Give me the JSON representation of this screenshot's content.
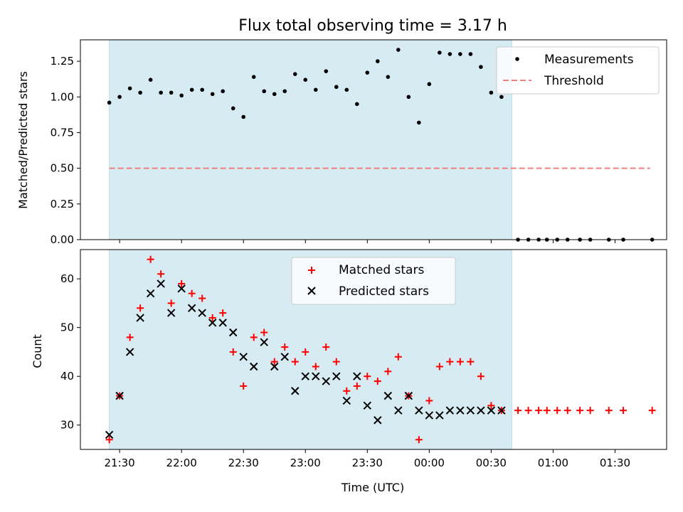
{
  "chart_data": [
    {
      "type": "scatter",
      "title": "Flux total observing time = 3.17 h",
      "xlabel": "",
      "ylabel": "Matched/Predicted stars",
      "ylim": [
        0,
        1.4
      ],
      "yticks": [
        "0.00",
        "0.25",
        "0.50",
        "0.75",
        "1.00",
        "1.25"
      ],
      "xlim": [
        "21:11",
        "01:55"
      ],
      "legend": "top-right",
      "shaded_span": [
        "21:25",
        "00:40"
      ],
      "threshold": {
        "name": "Threshold",
        "value": 0.5,
        "from": "21:25",
        "to": "01:47",
        "color": "#f08080"
      },
      "series": [
        {
          "name": "Measurements",
          "color": "#000000",
          "points": [
            [
              "21:25",
              0.96
            ],
            [
              "21:30",
              1.0
            ],
            [
              "21:35",
              1.06
            ],
            [
              "21:40",
              1.03
            ],
            [
              "21:45",
              1.12
            ],
            [
              "21:50",
              1.03
            ],
            [
              "21:55",
              1.03
            ],
            [
              "22:00",
              1.01
            ],
            [
              "22:05",
              1.05
            ],
            [
              "22:10",
              1.05
            ],
            [
              "22:15",
              1.02
            ],
            [
              "22:20",
              1.04
            ],
            [
              "22:25",
              0.92
            ],
            [
              "22:30",
              0.86
            ],
            [
              "22:35",
              1.14
            ],
            [
              "22:40",
              1.04
            ],
            [
              "22:45",
              1.02
            ],
            [
              "22:50",
              1.04
            ],
            [
              "22:55",
              1.16
            ],
            [
              "23:00",
              1.12
            ],
            [
              "23:05",
              1.05
            ],
            [
              "23:10",
              1.18
            ],
            [
              "23:15",
              1.07
            ],
            [
              "23:20",
              1.05
            ],
            [
              "23:25",
              0.95
            ],
            [
              "23:30",
              1.17
            ],
            [
              "23:35",
              1.25
            ],
            [
              "23:40",
              1.14
            ],
            [
              "23:45",
              1.33
            ],
            [
              "23:50",
              1.0
            ],
            [
              "23:55",
              0.82
            ],
            [
              "00:00",
              1.09
            ],
            [
              "00:05",
              1.31
            ],
            [
              "00:10",
              1.3
            ],
            [
              "00:15",
              1.3
            ],
            [
              "00:20",
              1.3
            ],
            [
              "00:25",
              1.21
            ],
            [
              "00:30",
              1.03
            ],
            [
              "00:35",
              1.0
            ],
            [
              "00:43",
              0.0
            ],
            [
              "00:48",
              0.0
            ],
            [
              "00:53",
              0.0
            ],
            [
              "00:57",
              0.0
            ],
            [
              "01:02",
              0.0
            ],
            [
              "01:07",
              0.0
            ],
            [
              "01:13",
              0.0
            ],
            [
              "01:18",
              0.0
            ],
            [
              "01:27",
              0.0
            ],
            [
              "01:34",
              0.0
            ],
            [
              "01:48",
              0.0
            ]
          ]
        }
      ]
    },
    {
      "type": "scatter",
      "title": "",
      "xlabel": "Time (UTC)",
      "ylabel": "Count",
      "ylim": [
        25,
        66
      ],
      "yticks": [
        "30",
        "40",
        "50",
        "60"
      ],
      "xlim": [
        "21:11",
        "01:55"
      ],
      "xticks": [
        "21:30",
        "22:00",
        "22:30",
        "23:00",
        "23:30",
        "00:00",
        "00:30",
        "01:00",
        "01:30"
      ],
      "legend": "upper center",
      "shaded_span": [
        "21:25",
        "00:40"
      ],
      "series": [
        {
          "name": "Matched stars",
          "color": "#ff0000",
          "marker": "+",
          "points": [
            [
              "21:25",
              27
            ],
            [
              "21:30",
              36
            ],
            [
              "21:35",
              48
            ],
            [
              "21:40",
              54
            ],
            [
              "21:45",
              64
            ],
            [
              "21:50",
              61
            ],
            [
              "21:55",
              55
            ],
            [
              "22:00",
              59
            ],
            [
              "22:05",
              57
            ],
            [
              "22:10",
              56
            ],
            [
              "22:15",
              52
            ],
            [
              "22:20",
              53
            ],
            [
              "22:25",
              45
            ],
            [
              "22:30",
              38
            ],
            [
              "22:35",
              48
            ],
            [
              "22:40",
              49
            ],
            [
              "22:45",
              43
            ],
            [
              "22:50",
              46
            ],
            [
              "22:55",
              43
            ],
            [
              "23:00",
              45
            ],
            [
              "23:05",
              42
            ],
            [
              "23:10",
              46
            ],
            [
              "23:15",
              43
            ],
            [
              "23:20",
              37
            ],
            [
              "23:25",
              38
            ],
            [
              "23:30",
              40
            ],
            [
              "23:35",
              39
            ],
            [
              "23:40",
              41
            ],
            [
              "23:45",
              44
            ],
            [
              "23:50",
              36
            ],
            [
              "23:55",
              27
            ],
            [
              "00:00",
              35
            ],
            [
              "00:05",
              42
            ],
            [
              "00:10",
              43
            ],
            [
              "00:15",
              43
            ],
            [
              "00:20",
              43
            ],
            [
              "00:25",
              40
            ],
            [
              "00:30",
              34
            ],
            [
              "00:35",
              33
            ],
            [
              "00:43",
              33
            ],
            [
              "00:48",
              33
            ],
            [
              "00:53",
              33
            ],
            [
              "00:57",
              33
            ],
            [
              "01:02",
              33
            ],
            [
              "01:07",
              33
            ],
            [
              "01:13",
              33
            ],
            [
              "01:18",
              33
            ],
            [
              "01:27",
              33
            ],
            [
              "01:34",
              33
            ],
            [
              "01:48",
              33
            ]
          ]
        },
        {
          "name": "Predicted stars",
          "color": "#000000",
          "marker": "x",
          "points": [
            [
              "21:25",
              28
            ],
            [
              "21:30",
              36
            ],
            [
              "21:35",
              45
            ],
            [
              "21:40",
              52
            ],
            [
              "21:45",
              57
            ],
            [
              "21:50",
              59
            ],
            [
              "21:55",
              53
            ],
            [
              "22:00",
              58
            ],
            [
              "22:05",
              54
            ],
            [
              "22:10",
              53
            ],
            [
              "22:15",
              51
            ],
            [
              "22:20",
              51
            ],
            [
              "22:25",
              49
            ],
            [
              "22:30",
              44
            ],
            [
              "22:35",
              42
            ],
            [
              "22:40",
              47
            ],
            [
              "22:45",
              42
            ],
            [
              "22:50",
              44
            ],
            [
              "22:55",
              37
            ],
            [
              "23:00",
              40
            ],
            [
              "23:05",
              40
            ],
            [
              "23:10",
              39
            ],
            [
              "23:15",
              40
            ],
            [
              "23:20",
              35
            ],
            [
              "23:25",
              40
            ],
            [
              "23:30",
              34
            ],
            [
              "23:35",
              31
            ],
            [
              "23:40",
              36
            ],
            [
              "23:45",
              33
            ],
            [
              "23:50",
              36
            ],
            [
              "23:55",
              33
            ],
            [
              "00:00",
              32
            ],
            [
              "00:05",
              32
            ],
            [
              "00:10",
              33
            ],
            [
              "00:15",
              33
            ],
            [
              "00:20",
              33
            ],
            [
              "00:25",
              33
            ],
            [
              "00:30",
              33
            ],
            [
              "00:35",
              33
            ]
          ]
        }
      ]
    }
  ]
}
